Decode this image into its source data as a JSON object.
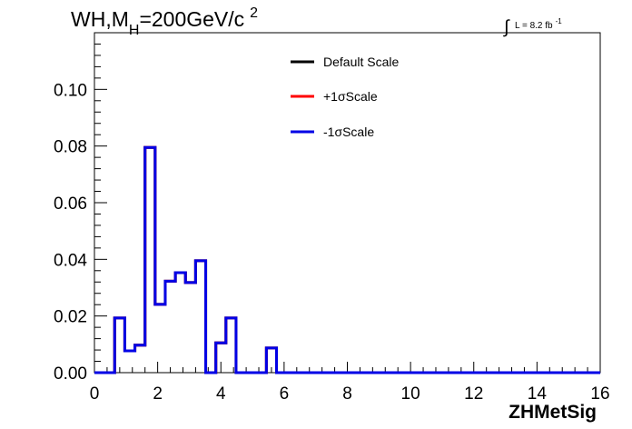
{
  "chart_data": {
    "type": "line",
    "title_parts": {
      "main": "WH,M",
      "sub": "H",
      "rest": "=200GeV/c",
      "sup": "2"
    },
    "lumi_parts": {
      "integral": "∫",
      "text": "L = 8.2 fb",
      "sup": "-1"
    },
    "xlabel": "ZHMetSig",
    "xlim": [
      0,
      16
    ],
    "ylim": [
      0,
      0.12
    ],
    "x_ticks": [
      0,
      2,
      4,
      6,
      8,
      10,
      12,
      14,
      16
    ],
    "x_tick_labels": [
      "0",
      "2",
      "4",
      "6",
      "8",
      "10",
      "12",
      "14",
      "16"
    ],
    "y_ticks": [
      0.0,
      0.02,
      0.04,
      0.06,
      0.08,
      0.1
    ],
    "y_tick_labels": [
      "0.00",
      "0.02",
      "0.04",
      "0.06",
      "0.08",
      "0.10"
    ],
    "bin_edges": [
      0,
      0.32,
      0.64,
      0.96,
      1.28,
      1.6,
      1.92,
      2.24,
      2.56,
      2.88,
      3.2,
      3.52,
      3.84,
      4.16,
      4.48,
      4.8,
      5.12,
      5.44,
      5.76,
      6.08,
      6.4,
      6.72,
      7.04,
      7.36,
      7.68,
      8.0,
      8.32,
      8.64,
      8.96,
      9.28,
      9.6,
      9.92,
      10.24,
      10.56,
      10.88,
      11.2,
      11.52,
      11.84,
      12.16,
      12.48,
      12.8,
      13.12,
      13.44,
      13.76,
      14.08,
      14.4,
      14.72,
      15.04,
      15.36,
      15.68,
      16.0
    ],
    "series": [
      {
        "name": "Default Scale",
        "color": "#000000",
        "values": [
          0,
          0,
          0.0193,
          0.0077,
          0.0097,
          0.0795,
          0.0241,
          0.0323,
          0.0353,
          0.0318,
          0.0395,
          0,
          0.0105,
          0.0193,
          0,
          0,
          0,
          0.0087,
          0,
          0,
          0,
          0,
          0,
          0,
          0,
          0,
          0,
          0,
          0,
          0,
          0,
          0,
          0,
          0,
          0,
          0,
          0,
          0,
          0,
          0,
          0,
          0,
          0,
          0,
          0,
          0,
          0,
          0,
          0,
          0
        ]
      },
      {
        "name": "+1σScale",
        "color": "#ff0000",
        "values": [
          0,
          0,
          0.0193,
          0.0077,
          0.0097,
          0.0795,
          0.0241,
          0.0323,
          0.0353,
          0.0318,
          0.0395,
          0,
          0.0105,
          0.0193,
          0,
          0,
          0,
          0.0087,
          0,
          0,
          0,
          0,
          0,
          0,
          0,
          0,
          0,
          0,
          0,
          0,
          0,
          0,
          0,
          0,
          0,
          0,
          0,
          0,
          0,
          0,
          0,
          0,
          0,
          0,
          0,
          0,
          0,
          0,
          0,
          0
        ]
      },
      {
        "name": "-1σScale",
        "color": "#0000e6",
        "values": [
          0,
          0,
          0.0193,
          0.0077,
          0.0097,
          0.0795,
          0.0241,
          0.0323,
          0.0353,
          0.0318,
          0.0395,
          0,
          0.0105,
          0.0193,
          0,
          0,
          0,
          0.0087,
          0,
          0,
          0,
          0,
          0,
          0,
          0,
          0,
          0,
          0,
          0,
          0,
          0,
          0,
          0,
          0,
          0,
          0,
          0,
          0,
          0,
          0,
          0,
          0,
          0,
          0,
          0,
          0,
          0,
          0,
          0,
          0
        ]
      }
    ],
    "grid": false,
    "legend_position": "top-center"
  }
}
